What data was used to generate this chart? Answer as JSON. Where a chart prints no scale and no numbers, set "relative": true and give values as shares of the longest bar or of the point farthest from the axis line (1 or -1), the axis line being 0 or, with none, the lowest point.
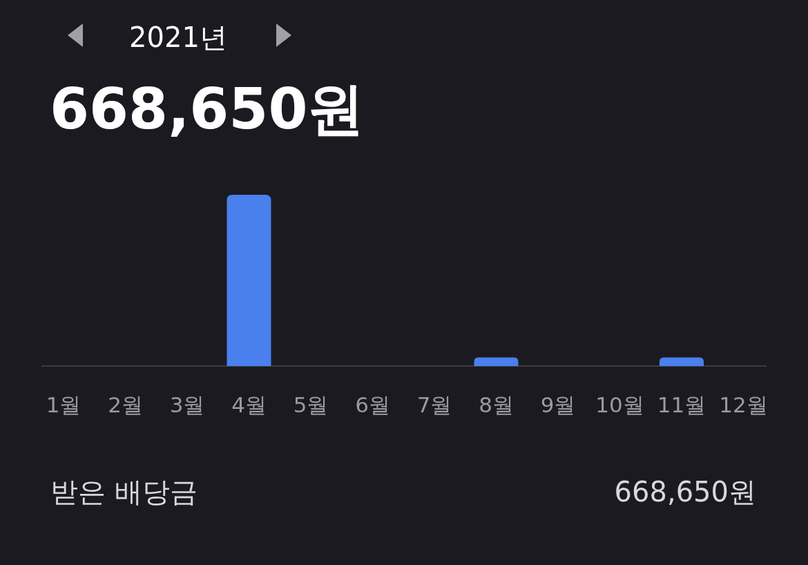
{
  "chart_data": {
    "type": "bar",
    "title": "2021년",
    "subtitle": "668,650원",
    "categories": [
      "1월",
      "2월",
      "3월",
      "4월",
      "5월",
      "6월",
      "7월",
      "8월",
      "9월",
      "10월",
      "11월",
      "12월"
    ],
    "values": [
      0,
      0,
      0,
      1,
      0,
      0,
      0,
      0.05,
      0,
      0,
      0.05,
      0
    ],
    "color": "#4a80ed",
    "relative": true,
    "annotations": [
      "받은 배당금",
      "668,650원"
    ]
  }
}
